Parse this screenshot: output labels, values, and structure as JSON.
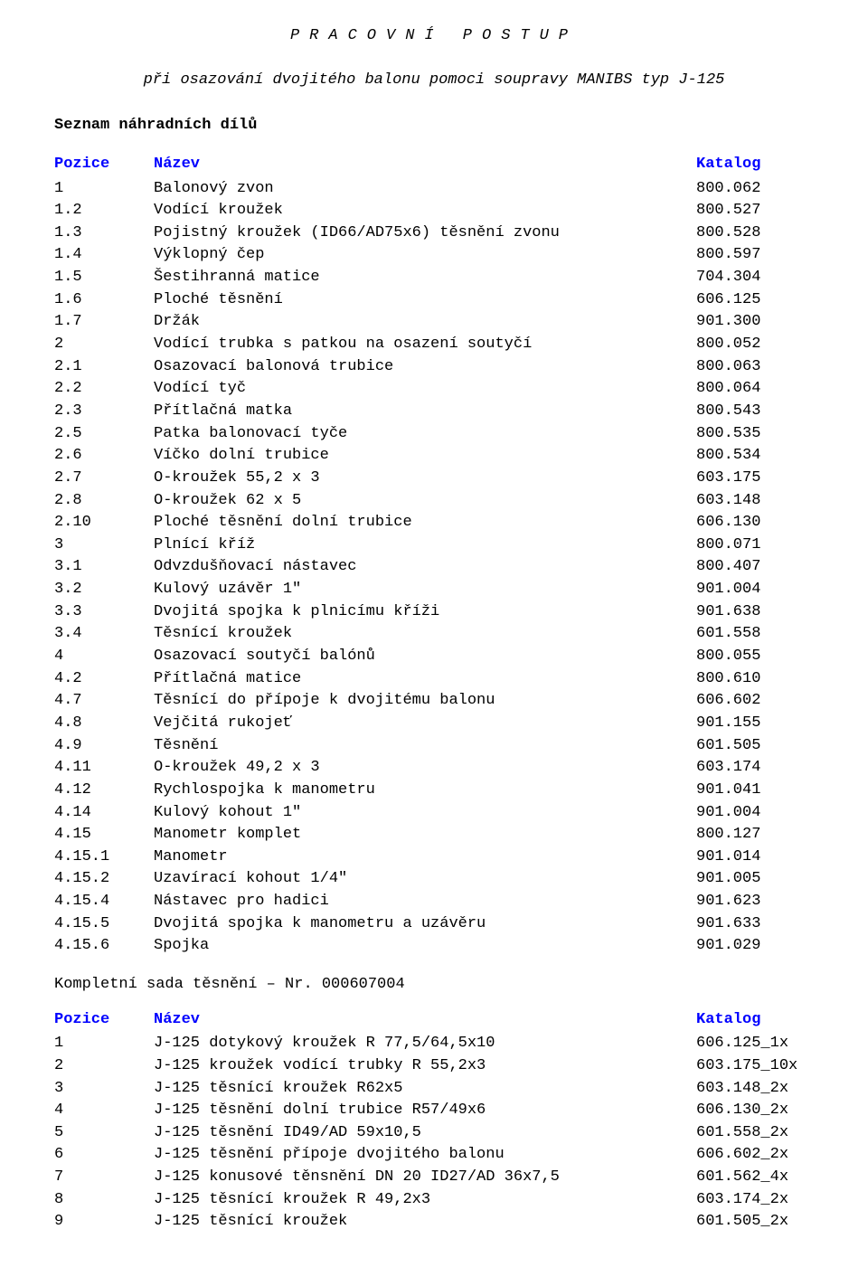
{
  "title": "PRACOVNÍ POSTUP",
  "subtitle": "při osazování dvojitého balonu pomoci soupravy MANIBS typ J-125",
  "section_label": "Seznam náhradních dílů",
  "table1": {
    "headers": {
      "pozice": "Pozice",
      "nazev": "Název",
      "katalog": "Katalog"
    },
    "rows": [
      {
        "p": "1",
        "n": "Balonový zvon",
        "k": "800.062"
      },
      {
        "p": "1.2",
        "n": "Vodící kroužek",
        "k": "800.527"
      },
      {
        "p": "1.3",
        "n": "Pojistný kroužek (ID66/AD75x6) těsnění zvonu",
        "k": "800.528"
      },
      {
        "p": "1.4",
        "n": "Výklopný čep",
        "k": "800.597"
      },
      {
        "p": "1.5",
        "n": "Šestihranná matice",
        "k": "704.304"
      },
      {
        "p": "1.6",
        "n": "Ploché těsnění",
        "k": "606.125"
      },
      {
        "p": "1.7",
        "n": "Držák",
        "k": "901.300"
      },
      {
        "p": "2",
        "n": "Vodící trubka s patkou na osazení soutyčí",
        "k": "800.052"
      },
      {
        "p": "2.1",
        "n": "Osazovací balonová trubice",
        "k": "800.063"
      },
      {
        "p": "2.2",
        "n": "Vodící tyč",
        "k": "800.064"
      },
      {
        "p": "2.3",
        "n": "Přítlačná matka",
        "k": "800.543"
      },
      {
        "p": "2.5",
        "n": "Patka balonovací tyče",
        "k": "800.535"
      },
      {
        "p": "2.6",
        "n": "Víčko dolní trubice",
        "k": "800.534"
      },
      {
        "p": "2.7",
        "n": "O-kroužek 55,2 x 3",
        "k": "603.175"
      },
      {
        "p": "2.8",
        "n": "O-kroužek 62 x 5",
        "k": "603.148"
      },
      {
        "p": "2.10",
        "n": "Ploché těsnění dolní trubice",
        "k": "606.130"
      },
      {
        "p": "3",
        "n": "Plnící kříž",
        "k": "800.071"
      },
      {
        "p": "3.1",
        "n": "Odvzdušňovací nástavec",
        "k": "800.407"
      },
      {
        "p": "3.2",
        "n": "Kulový uzávěr 1\"",
        "k": "901.004"
      },
      {
        "p": "3.3",
        "n": "Dvojitá spojka k plnicímu kříži",
        "k": "901.638"
      },
      {
        "p": "3.4",
        "n": "Těsnící kroužek",
        "k": "601.558"
      },
      {
        "p": "4",
        "n": "Osazovací soutyčí balónů",
        "k": "800.055"
      },
      {
        "p": "4.2",
        "n": "Přítlačná matice",
        "k": "800.610"
      },
      {
        "p": "4.7",
        "n": "Těsnící do přípoje k dvojitému balonu",
        "k": "606.602"
      },
      {
        "p": "4.8",
        "n": "Vejčitá rukojeť",
        "k": "901.155"
      },
      {
        "p": "4.9",
        "n": "Těsnění",
        "k": "601.505"
      },
      {
        "p": "4.11",
        "n": "O-kroužek 49,2 x 3",
        "k": "603.174"
      },
      {
        "p": "4.12",
        "n": "Rychlospojka k manometru",
        "k": "901.041"
      },
      {
        "p": "4.14",
        "n": "Kulový kohout 1\"",
        "k": "901.004"
      },
      {
        "p": "4.15",
        "n": "Manometr komplet",
        "k": "800.127"
      },
      {
        "p": "4.15.1",
        "n": "Manometr",
        "k": "901.014"
      },
      {
        "p": "4.15.2",
        "n": "Uzavírací kohout 1/4\"",
        "k": "901.005"
      },
      {
        "p": "4.15.4",
        "n": "Nástavec pro hadici",
        "k": "901.623"
      },
      {
        "p": "4.15.5",
        "n": "Dvojitá spojka k manometru a uzávěru",
        "k": "901.633"
      },
      {
        "p": "4.15.6",
        "n": "Spojka",
        "k": "901.029"
      }
    ]
  },
  "subsection": "Kompletní sada těsnění – Nr. 000607004",
  "table2": {
    "headers": {
      "pozice": "Pozice",
      "nazev": "Název",
      "katalog": "Katalog"
    },
    "rows": [
      {
        "p": "1",
        "n": "J-125 dotykový kroužek R 77,5/64,5x10",
        "k": "606.125_1x"
      },
      {
        "p": "2",
        "n": "J-125 kroužek vodící trubky R 55,2x3",
        "k": "603.175_10x"
      },
      {
        "p": "3",
        "n": "J-125 těsnící kroužek R62x5",
        "k": "603.148_2x"
      },
      {
        "p": "4",
        "n": "J-125 těsnění dolní trubice R57/49x6",
        "k": "606.130_2x"
      },
      {
        "p": "5",
        "n": "J-125 těsnění ID49/AD 59x10,5",
        "k": "601.558_2x"
      },
      {
        "p": "6",
        "n": "J-125 těsnění přípoje dvojitého balonu",
        "k": "606.602_2x"
      },
      {
        "p": "7",
        "n": "J-125 konusové těnsnění DN 20 ID27/AD 36x7,5",
        "k": "601.562_4x"
      },
      {
        "p": "8",
        "n": "J-125 těsnící kroužek R 49,2x3",
        "k": "603.174_2x"
      },
      {
        "p": "9",
        "n": "J-125 těsnící kroužek",
        "k": "601.505_2x"
      }
    ]
  }
}
